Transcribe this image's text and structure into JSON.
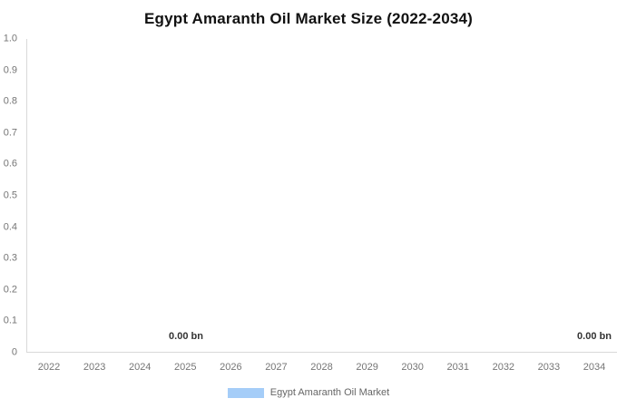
{
  "chart": {
    "title": "Egypt Amaranth Oil Market Size (2022-2034)"
  },
  "chart_data": {
    "type": "bar",
    "title": "Egypt Amaranth Oil Market Size (2022-2034)",
    "categories": [
      "2022",
      "2023",
      "2024",
      "2025",
      "2026",
      "2027",
      "2028",
      "2029",
      "2030",
      "2031",
      "2032",
      "2033",
      "2034"
    ],
    "series": [
      {
        "name": "Egypt Amaranth Oil Market",
        "color": "#A5CDF8",
        "values": [
          0,
          0,
          0,
          0,
          0,
          0,
          0,
          0,
          0,
          0,
          0,
          0,
          0
        ]
      }
    ],
    "data_labels": [
      {
        "category": "2025",
        "text": "0.00 bn"
      },
      {
        "category": "2034",
        "text": "0.00 bn"
      }
    ],
    "xlabel": "",
    "ylabel": "",
    "ylim": [
      0,
      1
    ],
    "y_ticks": [
      "0",
      "0.1",
      "0.2",
      "0.3",
      "0.4",
      "0.5",
      "0.6",
      "0.7",
      "0.8",
      "0.9",
      "1.0"
    ],
    "grid": false,
    "legend_position": "bottom",
    "legend": [
      {
        "label": "Egypt Amaranth Oil Market",
        "color": "#A5CDF8"
      }
    ],
    "colors": {
      "axis_line": "#d9d9d9",
      "tick_text": "#757575",
      "title_text": "#111111",
      "data_label_text": "#333333",
      "legend_text": "#666666"
    }
  }
}
